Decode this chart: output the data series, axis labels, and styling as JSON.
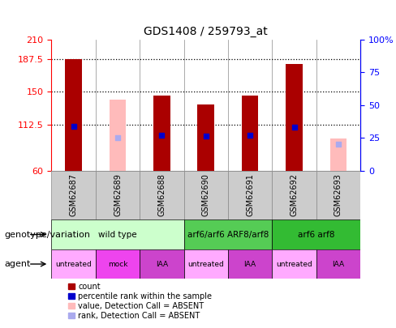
{
  "title": "GDS1408 / 259793_at",
  "samples": [
    "GSM62687",
    "GSM62689",
    "GSM62688",
    "GSM62690",
    "GSM62691",
    "GSM62692",
    "GSM62693"
  ],
  "count_values": [
    187.5,
    null,
    146.0,
    136.0,
    146.0,
    182.0,
    null
  ],
  "count_absent": [
    null,
    141.0,
    null,
    null,
    null,
    null,
    97.0
  ],
  "percentile_values": [
    34.0,
    null,
    27.0,
    26.0,
    27.0,
    33.0,
    null
  ],
  "percentile_absent": [
    null,
    25.0,
    null,
    null,
    null,
    null,
    20.0
  ],
  "ylim_left": [
    60,
    210
  ],
  "ylim_right": [
    0,
    100
  ],
  "yticks_left": [
    60,
    112.5,
    150,
    187.5,
    210
  ],
  "yticks_right": [
    0,
    25,
    50,
    75,
    100
  ],
  "hlines": [
    112.5,
    150,
    187.5
  ],
  "bar_width": 0.4,
  "bar_color_present": "#aa0000",
  "bar_color_absent": "#ffbbbb",
  "dot_color_present": "#0000cc",
  "dot_color_absent": "#aaaaee",
  "genotype_groups": [
    {
      "label": "wild type",
      "start": 0,
      "end": 3,
      "color": "#ccffcc"
    },
    {
      "label": "arf6/arf6 ARF8/arf8",
      "start": 3,
      "end": 5,
      "color": "#55cc55"
    },
    {
      "label": "arf6 arf8",
      "start": 5,
      "end": 7,
      "color": "#33bb33"
    }
  ],
  "agent_groups": [
    {
      "label": "untreated",
      "start": 0,
      "end": 1,
      "color": "#ffaaff"
    },
    {
      "label": "mock",
      "start": 1,
      "end": 2,
      "color": "#ee44ee"
    },
    {
      "label": "IAA",
      "start": 2,
      "end": 3,
      "color": "#cc44cc"
    },
    {
      "label": "untreated",
      "start": 3,
      "end": 4,
      "color": "#ffaaff"
    },
    {
      "label": "IAA",
      "start": 4,
      "end": 5,
      "color": "#cc44cc"
    },
    {
      "label": "untreated",
      "start": 5,
      "end": 6,
      "color": "#ffaaff"
    },
    {
      "label": "IAA",
      "start": 6,
      "end": 7,
      "color": "#cc44cc"
    }
  ],
  "legend_items": [
    {
      "label": "count",
      "color": "#aa0000"
    },
    {
      "label": "percentile rank within the sample",
      "color": "#0000cc"
    },
    {
      "label": "value, Detection Call = ABSENT",
      "color": "#ffbbbb"
    },
    {
      "label": "rank, Detection Call = ABSENT",
      "color": "#aaaaee"
    }
  ],
  "label_genotype": "genotype/variation",
  "label_agent": "agent",
  "base_value": 60,
  "sample_cell_color": "#cccccc",
  "sample_cell_border": "#888888"
}
